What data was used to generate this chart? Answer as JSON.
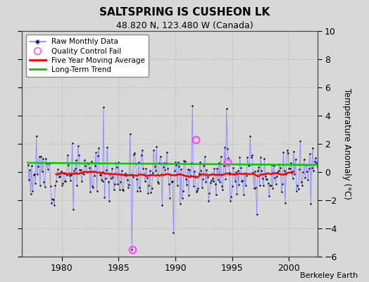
{
  "title": "SALTSPRING IS CUSHEON LK",
  "subtitle": "48.820 N, 123.480 W (Canada)",
  "ylabel": "Temperature Anomaly (°C)",
  "credit": "Berkeley Earth",
  "ylim": [
    -6,
    10
  ],
  "xlim": [
    1976.5,
    2002.5
  ],
  "yticks": [
    -6,
    -4,
    -2,
    0,
    2,
    4,
    6,
    8,
    10
  ],
  "xticks": [
    1980,
    1985,
    1990,
    1995,
    2000
  ],
  "bg_color": "#d8d8d8",
  "plot_bg_color": "#d8d8d8",
  "raw_line_color": "#8888ff",
  "raw_dot_color": "#000000",
  "moving_avg_color": "#ff0000",
  "trend_color": "#00cc00",
  "qc_fail_color": "#ff44ff",
  "seed": 12,
  "n_years": 26,
  "start_year": 1977,
  "amplitude": 1.1,
  "trend_val": 0.55,
  "trend_slope": -0.003
}
